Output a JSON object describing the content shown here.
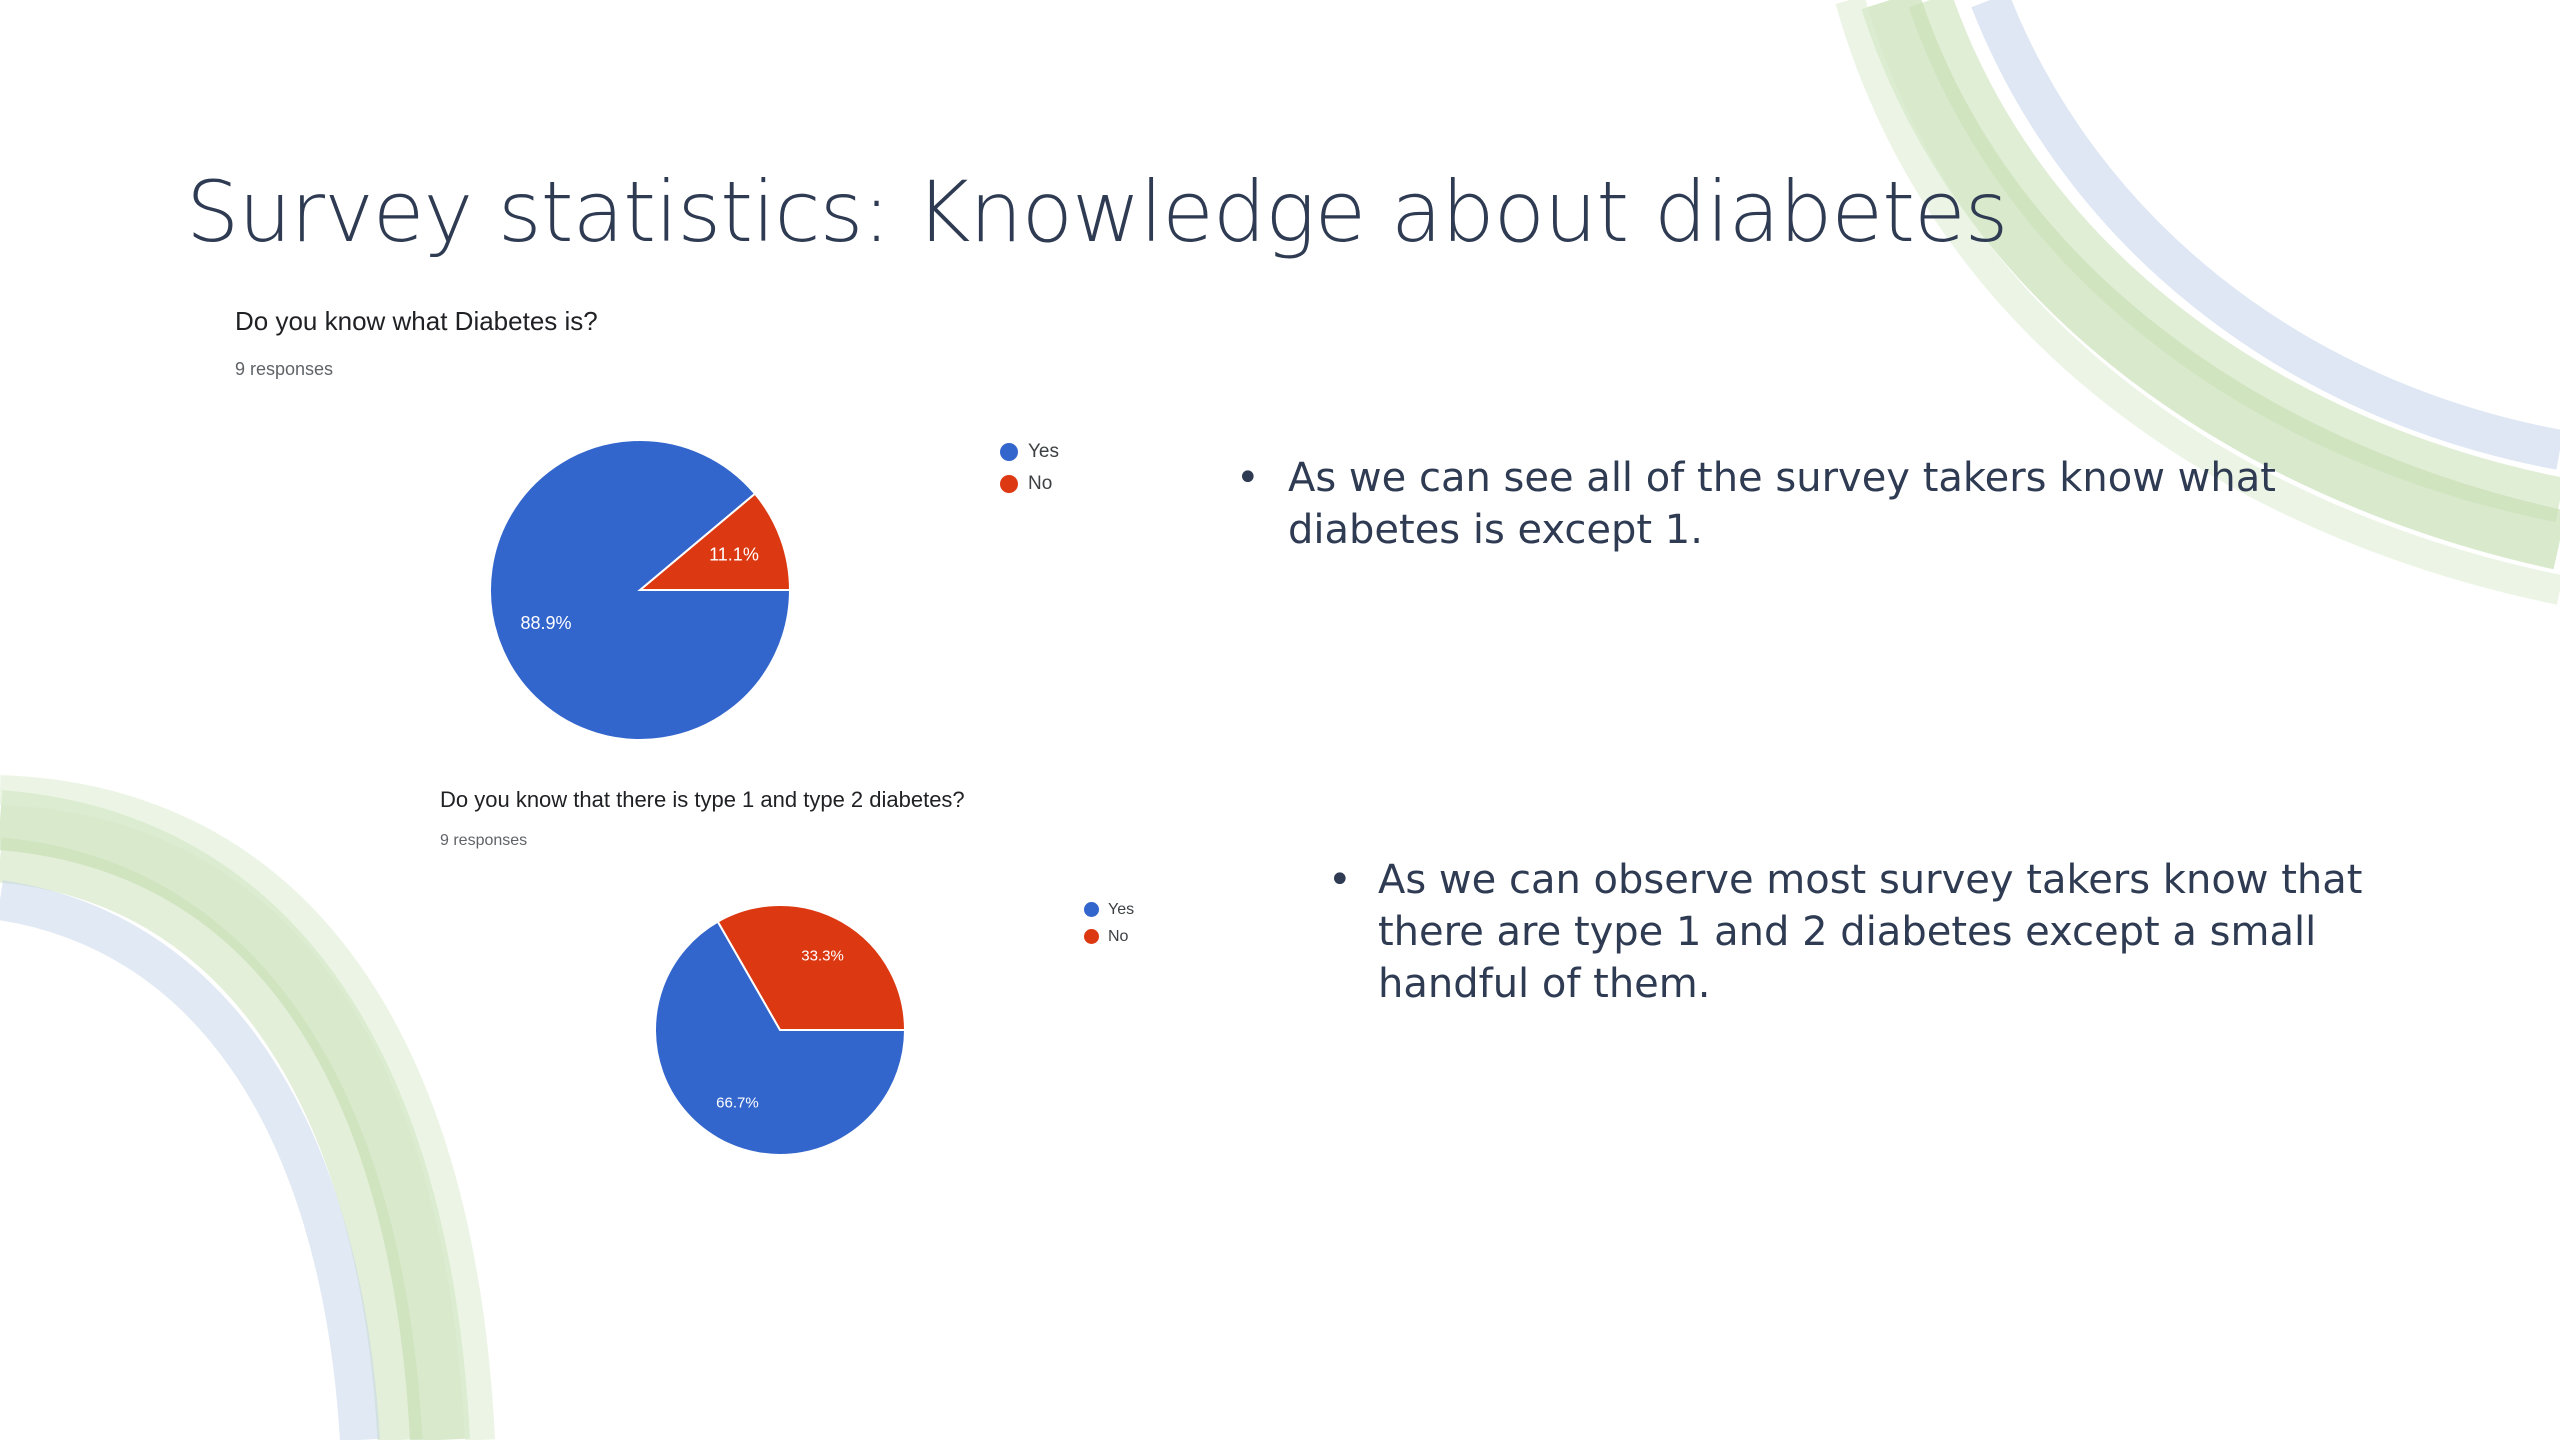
{
  "slide": {
    "title": "Survey statistics: Knowledge about diabetes",
    "accent_green": "#a9cf8e",
    "accent_blue": "#c3d3ea"
  },
  "chart_data": [
    {
      "type": "pie",
      "title": "Do you know what Diabetes is?",
      "subtitle": "9 responses",
      "categories": [
        "Yes",
        "No"
      ],
      "values": [
        88.9,
        11.1
      ],
      "labels": [
        "88.9%",
        "11.1%"
      ],
      "colors": [
        "#3366cc",
        "#dc3912"
      ],
      "legend": "right"
    },
    {
      "type": "pie",
      "title": "Do you know that there is type 1 and  type 2 diabetes?",
      "subtitle": "9 responses",
      "categories": [
        "Yes",
        "No"
      ],
      "values": [
        66.7,
        33.3
      ],
      "labels": [
        "66.7%",
        "33.3%"
      ],
      "colors": [
        "#3366cc",
        "#dc3912"
      ],
      "legend": "right"
    }
  ],
  "bullets": [
    {
      "mark": "•",
      "text": "As we can see all of the survey takers know what diabetes is except 1."
    },
    {
      "mark": "•",
      "text": "As we can observe most survey takers know that there are type 1 and 2 diabetes except a small handful of them."
    }
  ]
}
